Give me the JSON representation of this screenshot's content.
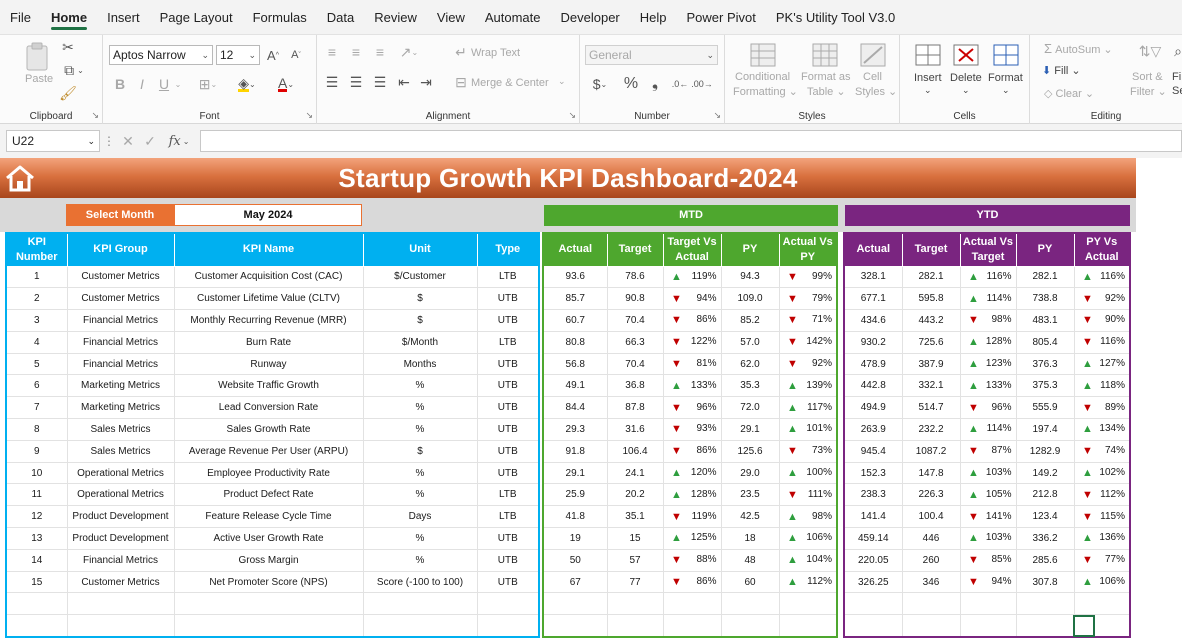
{
  "menu": [
    "File",
    "Home",
    "Insert",
    "Page Layout",
    "Formulas",
    "Data",
    "Review",
    "View",
    "Automate",
    "Developer",
    "Help",
    "Power Pivot",
    "PK's Utility Tool V3.0"
  ],
  "menu_active": "Home",
  "ribbon": {
    "clipboard": {
      "label": "Clipboard",
      "paste": "Paste"
    },
    "font": {
      "label": "Font",
      "name": "Aptos Narrow",
      "size": "12",
      "bold": "B",
      "italic": "I",
      "underline": "U"
    },
    "alignment": {
      "label": "Alignment",
      "wrap": "Wrap Text",
      "merge": "Merge & Center"
    },
    "number": {
      "label": "Number",
      "format": "General"
    },
    "styles": {
      "label": "Styles",
      "conditional": "Conditional",
      "formatting": "Formatting",
      "format_as": "Format as",
      "table": "Table",
      "cell": "Cell",
      "cell_styles": "Styles"
    },
    "cells": {
      "label": "Cells",
      "insert": "Insert",
      "delete": "Delete",
      "format": "Format"
    },
    "editing": {
      "label": "Editing",
      "autosum": "AutoSum",
      "fill": "Fill",
      "clear": "Clear",
      "sort": "Sort &",
      "filter": "Filter",
      "find1": "Fi",
      "find2": "Se"
    }
  },
  "formula_bar": {
    "name_box": "U22",
    "fx": "fx"
  },
  "dashboard": {
    "title": "Startup Growth KPI Dashboard-2024",
    "select_month_label": "Select Month",
    "select_month_value": "May 2024",
    "mtd_label": "MTD",
    "ytd_label": "YTD",
    "left_headers": [
      "KPI Number",
      "KPI Group",
      "KPI Name",
      "Unit",
      "Type"
    ],
    "mtd_headers": [
      "Actual",
      "Target",
      "Target Vs Actual",
      "PY",
      "Actual Vs PY"
    ],
    "ytd_headers": [
      "Actual",
      "Target",
      "Actual Vs Target",
      "PY",
      "PY Vs Actual"
    ],
    "rows": [
      {
        "num": "1",
        "group": "Customer Metrics",
        "name": "Customer Acquisition Cost (CAC)",
        "unit": "$/Customer",
        "type": "LTB",
        "m_act": "93.6",
        "m_tgt": "78.6",
        "m_tva": "119%",
        "m_tva_dir": "up",
        "m_py": "94.3",
        "m_avp": "99%",
        "m_avp_dir": "down",
        "y_act": "328.1",
        "y_tgt": "282.1",
        "y_avt": "116%",
        "y_avt_dir": "up",
        "y_py": "282.1",
        "y_pva": "116%",
        "y_pva_dir": "up"
      },
      {
        "num": "2",
        "group": "Customer Metrics",
        "name": "Customer Lifetime Value (CLTV)",
        "unit": "$",
        "type": "UTB",
        "m_act": "85.7",
        "m_tgt": "90.8",
        "m_tva": "94%",
        "m_tva_dir": "down",
        "m_py": "109.0",
        "m_avp": "79%",
        "m_avp_dir": "down",
        "y_act": "677.1",
        "y_tgt": "595.8",
        "y_avt": "114%",
        "y_avt_dir": "up",
        "y_py": "738.8",
        "y_pva": "92%",
        "y_pva_dir": "down"
      },
      {
        "num": "3",
        "group": "Financial Metrics",
        "name": "Monthly Recurring Revenue (MRR)",
        "unit": "$",
        "type": "UTB",
        "m_act": "60.7",
        "m_tgt": "70.4",
        "m_tva": "86%",
        "m_tva_dir": "down",
        "m_py": "85.2",
        "m_avp": "71%",
        "m_avp_dir": "down",
        "y_act": "434.6",
        "y_tgt": "443.2",
        "y_avt": "98%",
        "y_avt_dir": "down",
        "y_py": "483.1",
        "y_pva": "90%",
        "y_pva_dir": "down"
      },
      {
        "num": "4",
        "group": "Financial Metrics",
        "name": "Burn Rate",
        "unit": "$/Month",
        "type": "LTB",
        "m_act": "80.8",
        "m_tgt": "66.3",
        "m_tva": "122%",
        "m_tva_dir": "down",
        "m_py": "57.0",
        "m_avp": "142%",
        "m_avp_dir": "down",
        "y_act": "930.2",
        "y_tgt": "725.6",
        "y_avt": "128%",
        "y_avt_dir": "up",
        "y_py": "805.4",
        "y_pva": "116%",
        "y_pva_dir": "down"
      },
      {
        "num": "5",
        "group": "Financial Metrics",
        "name": "Runway",
        "unit": "Months",
        "type": "UTB",
        "m_act": "56.8",
        "m_tgt": "70.4",
        "m_tva": "81%",
        "m_tva_dir": "down",
        "m_py": "62.0",
        "m_avp": "92%",
        "m_avp_dir": "down",
        "y_act": "478.9",
        "y_tgt": "387.9",
        "y_avt": "123%",
        "y_avt_dir": "up",
        "y_py": "376.3",
        "y_pva": "127%",
        "y_pva_dir": "up"
      },
      {
        "num": "6",
        "group": "Marketing Metrics",
        "name": "Website Traffic Growth",
        "unit": "%",
        "type": "UTB",
        "m_act": "49.1",
        "m_tgt": "36.8",
        "m_tva": "133%",
        "m_tva_dir": "up",
        "m_py": "35.3",
        "m_avp": "139%",
        "m_avp_dir": "up",
        "y_act": "442.8",
        "y_tgt": "332.1",
        "y_avt": "133%",
        "y_avt_dir": "up",
        "y_py": "375.3",
        "y_pva": "118%",
        "y_pva_dir": "up"
      },
      {
        "num": "7",
        "group": "Marketing Metrics",
        "name": "Lead Conversion Rate",
        "unit": "%",
        "type": "UTB",
        "m_act": "84.4",
        "m_tgt": "87.8",
        "m_tva": "96%",
        "m_tva_dir": "down",
        "m_py": "72.0",
        "m_avp": "117%",
        "m_avp_dir": "up",
        "y_act": "494.9",
        "y_tgt": "514.7",
        "y_avt": "96%",
        "y_avt_dir": "down",
        "y_py": "555.9",
        "y_pva": "89%",
        "y_pva_dir": "down"
      },
      {
        "num": "8",
        "group": "Sales Metrics",
        "name": "Sales Growth Rate",
        "unit": "%",
        "type": "UTB",
        "m_act": "29.3",
        "m_tgt": "31.6",
        "m_tva": "93%",
        "m_tva_dir": "down",
        "m_py": "29.1",
        "m_avp": "101%",
        "m_avp_dir": "up",
        "y_act": "263.9",
        "y_tgt": "232.2",
        "y_avt": "114%",
        "y_avt_dir": "up",
        "y_py": "197.4",
        "y_pva": "134%",
        "y_pva_dir": "up"
      },
      {
        "num": "9",
        "group": "Sales Metrics",
        "name": "Average Revenue Per User (ARPU)",
        "unit": "$",
        "type": "UTB",
        "m_act": "91.8",
        "m_tgt": "106.4",
        "m_tva": "86%",
        "m_tva_dir": "down",
        "m_py": "125.6",
        "m_avp": "73%",
        "m_avp_dir": "down",
        "y_act": "945.4",
        "y_tgt": "1087.2",
        "y_avt": "87%",
        "y_avt_dir": "down",
        "y_py": "1282.9",
        "y_pva": "74%",
        "y_pva_dir": "down"
      },
      {
        "num": "10",
        "group": "Operational Metrics",
        "name": "Employee Productivity Rate",
        "unit": "%",
        "type": "UTB",
        "m_act": "29.1",
        "m_tgt": "24.1",
        "m_tva": "120%",
        "m_tva_dir": "up",
        "m_py": "29.0",
        "m_avp": "100%",
        "m_avp_dir": "up",
        "y_act": "152.3",
        "y_tgt": "147.8",
        "y_avt": "103%",
        "y_avt_dir": "up",
        "y_py": "149.2",
        "y_pva": "102%",
        "y_pva_dir": "up"
      },
      {
        "num": "11",
        "group": "Operational Metrics",
        "name": "Product Defect Rate",
        "unit": "%",
        "type": "LTB",
        "m_act": "25.9",
        "m_tgt": "20.2",
        "m_tva": "128%",
        "m_tva_dir": "up",
        "m_py": "23.5",
        "m_avp": "111%",
        "m_avp_dir": "down",
        "y_act": "238.3",
        "y_tgt": "226.3",
        "y_avt": "105%",
        "y_avt_dir": "up",
        "y_py": "212.8",
        "y_pva": "112%",
        "y_pva_dir": "down"
      },
      {
        "num": "12",
        "group": "Product Development",
        "name": "Feature Release Cycle Time",
        "unit": "Days",
        "type": "LTB",
        "m_act": "41.8",
        "m_tgt": "35.1",
        "m_tva": "119%",
        "m_tva_dir": "down",
        "m_py": "42.5",
        "m_avp": "98%",
        "m_avp_dir": "up",
        "y_act": "141.4",
        "y_tgt": "100.4",
        "y_avt": "141%",
        "y_avt_dir": "down",
        "y_py": "123.4",
        "y_pva": "115%",
        "y_pva_dir": "down"
      },
      {
        "num": "13",
        "group": "Product Development",
        "name": "Active User Growth Rate",
        "unit": "%",
        "type": "UTB",
        "m_act": "19",
        "m_tgt": "15",
        "m_tva": "125%",
        "m_tva_dir": "up",
        "m_py": "18",
        "m_avp": "106%",
        "m_avp_dir": "up",
        "y_act": "459.14",
        "y_tgt": "446",
        "y_avt": "103%",
        "y_avt_dir": "up",
        "y_py": "336.2",
        "y_pva": "136%",
        "y_pva_dir": "up"
      },
      {
        "num": "14",
        "group": "Financial Metrics",
        "name": "Gross Margin",
        "unit": "%",
        "type": "UTB",
        "m_act": "50",
        "m_tgt": "57",
        "m_tva": "88%",
        "m_tva_dir": "down",
        "m_py": "48",
        "m_avp": "104%",
        "m_avp_dir": "up",
        "y_act": "220.05",
        "y_tgt": "260",
        "y_avt": "85%",
        "y_avt_dir": "down",
        "y_py": "285.6",
        "y_pva": "77%",
        "y_pva_dir": "down"
      },
      {
        "num": "15",
        "group": "Customer Metrics",
        "name": "Net Promoter Score (NPS)",
        "unit": "Score (-100 to 100)",
        "type": "UTB",
        "m_act": "67",
        "m_tgt": "77",
        "m_tva": "86%",
        "m_tva_dir": "down",
        "m_py": "60",
        "m_avp": "112%",
        "m_avp_dir": "up",
        "y_act": "326.25",
        "y_tgt": "346",
        "y_avt": "94%",
        "y_avt_dir": "down",
        "y_py": "307.8",
        "y_pva": "106%",
        "y_pva_dir": "up"
      }
    ],
    "blank_rows": 2
  },
  "colors": {
    "excel_green": "#1f7244",
    "orange": "#e97132",
    "blue": "#00b0f0",
    "green": "#4ea72e",
    "purple": "#7a2580",
    "up_arrow": "#2e9e3e",
    "down_arrow": "#c00000"
  }
}
